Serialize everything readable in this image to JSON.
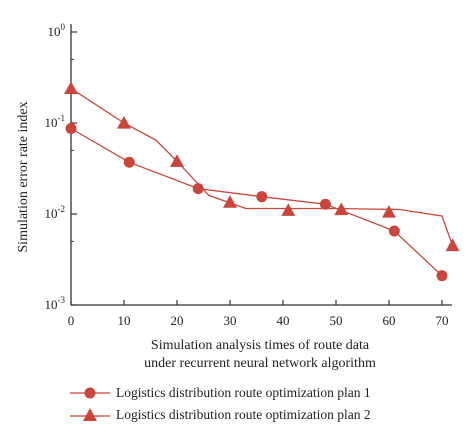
{
  "chart_data": {
    "type": "line",
    "title": "",
    "xlabel_line1": "Simulation analysis times of route data",
    "xlabel_line2": "under recurrent neural network algorithm",
    "ylabel": "Simulation error rate index",
    "y_scale": "log",
    "xlim": [
      0,
      70
    ],
    "ylim": [
      0.001,
      1
    ],
    "x_ticks": [
      0,
      10,
      20,
      30,
      40,
      50,
      60,
      70
    ],
    "y_ticks": [
      {
        "value": 1,
        "base": "10",
        "exp": "0"
      },
      {
        "value": 0.1,
        "base": "10",
        "exp": "-1"
      },
      {
        "value": 0.01,
        "base": "10",
        "exp": "-2"
      },
      {
        "value": 0.001,
        "base": "10",
        "exp": "-3"
      }
    ],
    "grid": false,
    "legend_position": "bottom",
    "colors": {
      "series": "#c9463d",
      "axis": "#333333"
    },
    "series": [
      {
        "name": "Logistics distribution route optimization plan 1",
        "marker": "circle",
        "markers": [
          {
            "x": 0,
            "y": 0.087
          },
          {
            "x": 11,
            "y": 0.037
          },
          {
            "x": 24,
            "y": 0.019
          },
          {
            "x": 36,
            "y": 0.0155
          },
          {
            "x": 48,
            "y": 0.0128
          },
          {
            "x": 61,
            "y": 0.0065
          },
          {
            "x": 70,
            "y": 0.0021
          }
        ],
        "line": [
          {
            "x": 0,
            "y": 0.087
          },
          {
            "x": 11,
            "y": 0.037
          },
          {
            "x": 24,
            "y": 0.019
          },
          {
            "x": 36,
            "y": 0.0155
          },
          {
            "x": 48,
            "y": 0.0128
          },
          {
            "x": 61,
            "y": 0.0065
          },
          {
            "x": 70,
            "y": 0.0021
          }
        ]
      },
      {
        "name": "Logistics distribution route optimization plan 2",
        "marker": "triangle",
        "markers": [
          {
            "x": 0,
            "y": 0.24
          },
          {
            "x": 10,
            "y": 0.1
          },
          {
            "x": 20,
            "y": 0.038
          },
          {
            "x": 30,
            "y": 0.0135
          },
          {
            "x": 41,
            "y": 0.011
          },
          {
            "x": 51,
            "y": 0.0112
          },
          {
            "x": 60,
            "y": 0.0105
          },
          {
            "x": 72,
            "y": 0.0045
          }
        ],
        "line": [
          {
            "x": 0,
            "y": 0.24
          },
          {
            "x": 10,
            "y": 0.1
          },
          {
            "x": 16,
            "y": 0.065
          },
          {
            "x": 20,
            "y": 0.038
          },
          {
            "x": 26,
            "y": 0.016
          },
          {
            "x": 33,
            "y": 0.0115
          },
          {
            "x": 50,
            "y": 0.0115
          },
          {
            "x": 62,
            "y": 0.0112
          },
          {
            "x": 70,
            "y": 0.0095
          },
          {
            "x": 72,
            "y": 0.0045
          }
        ]
      }
    ]
  }
}
